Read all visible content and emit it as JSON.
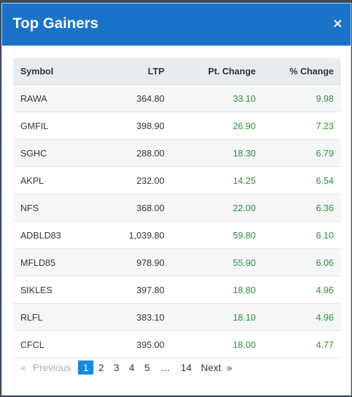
{
  "modal": {
    "title": "Top Gainers",
    "close_label": "×"
  },
  "table": {
    "headers": [
      "Symbol",
      "LTP",
      "Pt. Change",
      "% Change"
    ],
    "rows": [
      {
        "symbol": "RAWA",
        "ltp": "364.80",
        "pt_change": "33.10",
        "pct_change": "9.98"
      },
      {
        "symbol": "GMFIL",
        "ltp": "398.90",
        "pt_change": "26.90",
        "pct_change": "7.23"
      },
      {
        "symbol": "SGHC",
        "ltp": "288.00",
        "pt_change": "18.30",
        "pct_change": "6.79"
      },
      {
        "symbol": "AKPL",
        "ltp": "232.00",
        "pt_change": "14.25",
        "pct_change": "6.54"
      },
      {
        "symbol": "NFS",
        "ltp": "368.00",
        "pt_change": "22.00",
        "pct_change": "6.36"
      },
      {
        "symbol": "ADBLD83",
        "ltp": "1,039.80",
        "pt_change": "59.80",
        "pct_change": "6.10"
      },
      {
        "symbol": "MFLD85",
        "ltp": "978.90",
        "pt_change": "55.90",
        "pct_change": "6.06"
      },
      {
        "symbol": "SIKLES",
        "ltp": "397.80",
        "pt_change": "18.80",
        "pct_change": "4.96"
      },
      {
        "symbol": "RLFL",
        "ltp": "383.10",
        "pt_change": "18.10",
        "pct_change": "4.96"
      },
      {
        "symbol": "CFCL",
        "ltp": "395.00",
        "pt_change": "18.00",
        "pct_change": "4.77"
      }
    ]
  },
  "pagination": {
    "prev_arrow": "«",
    "prev_label": "Previous",
    "pages": [
      "1",
      "2",
      "3",
      "4",
      "5"
    ],
    "ellipsis": "…",
    "last_page": "14",
    "next_label": "Next",
    "next_arrow": "»",
    "current": "1"
  },
  "colors": {
    "header_bg": "#1a73c9",
    "positive": "#2e8b3a",
    "active_page": "#1a8ae0"
  }
}
